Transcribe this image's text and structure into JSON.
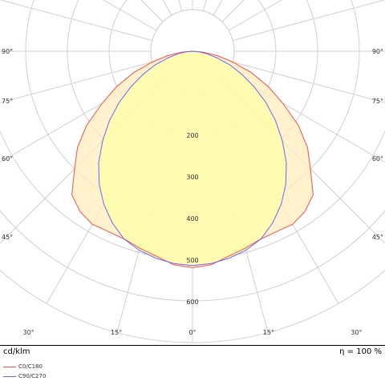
{
  "chart_data": {
    "type": "polar",
    "angle_labels": [
      "90°",
      "75°",
      "60°",
      "45°",
      "30°",
      "15°",
      "0°",
      "15°",
      "30°",
      "45°",
      "60°",
      "75°",
      "90°"
    ],
    "radial_ticks": [
      200,
      300,
      400,
      500,
      600
    ],
    "radial_max": 700,
    "grid": true,
    "series": [
      {
        "name": "C0/C180",
        "color": "#ff4d4d",
        "fill": "#ffeebb",
        "angles_deg": [
          0,
          5,
          10,
          15,
          20,
          25,
          30,
          35,
          40,
          45,
          50,
          55,
          60,
          65,
          70,
          75,
          80,
          85,
          90
        ],
        "values": [
          520,
          515,
          500,
          490,
          480,
          478,
          480,
          470,
          450,
          400,
          360,
          310,
          250,
          200,
          150,
          100,
          60,
          25,
          0
        ]
      },
      {
        "name": "C90/C270",
        "color": "#6666ff",
        "fill": "#ffffa8",
        "angles_deg": [
          0,
          5,
          10,
          15,
          20,
          25,
          30,
          35,
          40,
          45,
          50,
          55,
          60,
          65,
          70,
          75,
          80,
          85,
          90
        ],
        "values": [
          515,
          512,
          505,
          495,
          480,
          455,
          425,
          390,
          350,
          305,
          260,
          215,
          170,
          130,
          95,
          60,
          35,
          15,
          0
        ]
      }
    ]
  },
  "footer": {
    "unit": "cd/klm",
    "efficiency_label": "η = ",
    "efficiency_value": "100 %"
  },
  "legend": [
    {
      "label": "C0/C180",
      "color": "#ff4d4d"
    },
    {
      "label": "C90/C270",
      "color": "#6666ff"
    }
  ]
}
